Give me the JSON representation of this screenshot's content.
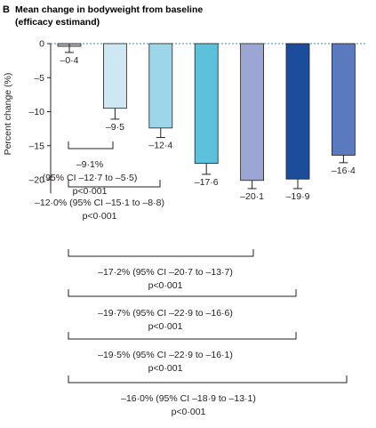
{
  "chart_data": {
    "type": "bar",
    "panel": "B",
    "title_lines": [
      "Mean change in bodyweight from baseline",
      "(efficacy estimand)"
    ],
    "ylabel": "Percent change (%)",
    "ylim": [
      -22,
      0
    ],
    "yticks": [
      0,
      -5,
      -10,
      -15,
      -20
    ],
    "ytick_labels": [
      "0",
      "–5",
      "–10",
      "–15",
      "–20"
    ],
    "baseline": "dashed",
    "values": [
      -0.4,
      -9.5,
      -12.4,
      -17.6,
      -20.1,
      -19.9,
      -16.4
    ],
    "value_labels": [
      "–0·4",
      "–9·5",
      "–12·4",
      "–17·6",
      "–20·1",
      "–19·9",
      "–16·4"
    ],
    "error_bars": [
      [
        -1.3,
        0
      ],
      [
        -11.1,
        -9.5
      ],
      [
        -13.8,
        -12.4
      ],
      [
        -19.2,
        -17.6
      ],
      [
        -21.3,
        -20.1
      ],
      [
        -21.3,
        -19.9
      ],
      [
        -17.5,
        -16.4
      ]
    ],
    "colors": [
      "#b0b3b9",
      "#cde8f2",
      "#9dd6e8",
      "#5ec1dc",
      "#9ba6d5",
      "#1b4d9b",
      "#5b79bf"
    ],
    "comparisons": [
      {
        "from": 0,
        "to": 1,
        "lines": [
          "–9·1%",
          "(95% CI –12·7 to –5·5)",
          "p<0·001"
        ]
      },
      {
        "from": 0,
        "to": 2,
        "lines": [
          "–12·0% (95% CI –15·1 to –8·8)",
          "p<0·001"
        ]
      },
      {
        "from": 0,
        "to": 3,
        "lines": [
          "–17·2% (95% CI –20·7 to –13·7)",
          "p<0·001"
        ]
      },
      {
        "from": 0,
        "to": 4,
        "lines": [
          "–19·7% (95% CI –22·9 to –16·6)",
          "p<0·001"
        ]
      },
      {
        "from": 0,
        "to": 5,
        "lines": [
          "–19·5% (95% CI –22·9 to –16·1)",
          "p<0·001"
        ]
      },
      {
        "from": 0,
        "to": 6,
        "lines": [
          "–16·0% (95% CI –18·9 to –13·1)",
          "p<0·001"
        ]
      }
    ]
  }
}
